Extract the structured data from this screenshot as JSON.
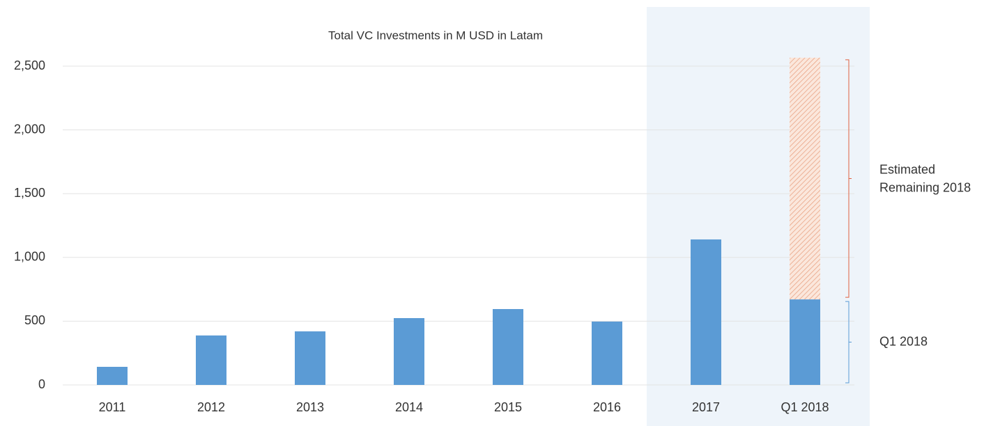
{
  "chart_data": {
    "type": "bar",
    "title": "Total VC Investments in M USD in Latam",
    "categories": [
      "2011",
      "2012",
      "2013",
      "2014",
      "2015",
      "2016",
      "2017",
      "Q1 2018"
    ],
    "series": [
      {
        "name": "Q1 2018",
        "color": "#5b9bd5",
        "values": [
          142,
          388,
          420,
          524,
          595,
          497,
          1141,
          671
        ]
      },
      {
        "name": "Estimated Remaining 2018",
        "color": "#f4b183",
        "values": [
          null,
          null,
          null,
          null,
          null,
          null,
          null,
          1895
        ]
      }
    ],
    "ylim": [
      0,
      2500
    ],
    "yticks": [
      0,
      500,
      {
        "value": 1000,
        "label": "1,000"
      },
      {
        "value": 1500,
        "label": "1,500"
      },
      {
        "value": 2000,
        "label": "2,000"
      },
      {
        "value": 2500,
        "label": "2,500"
      }
    ],
    "grid": true
  }
}
